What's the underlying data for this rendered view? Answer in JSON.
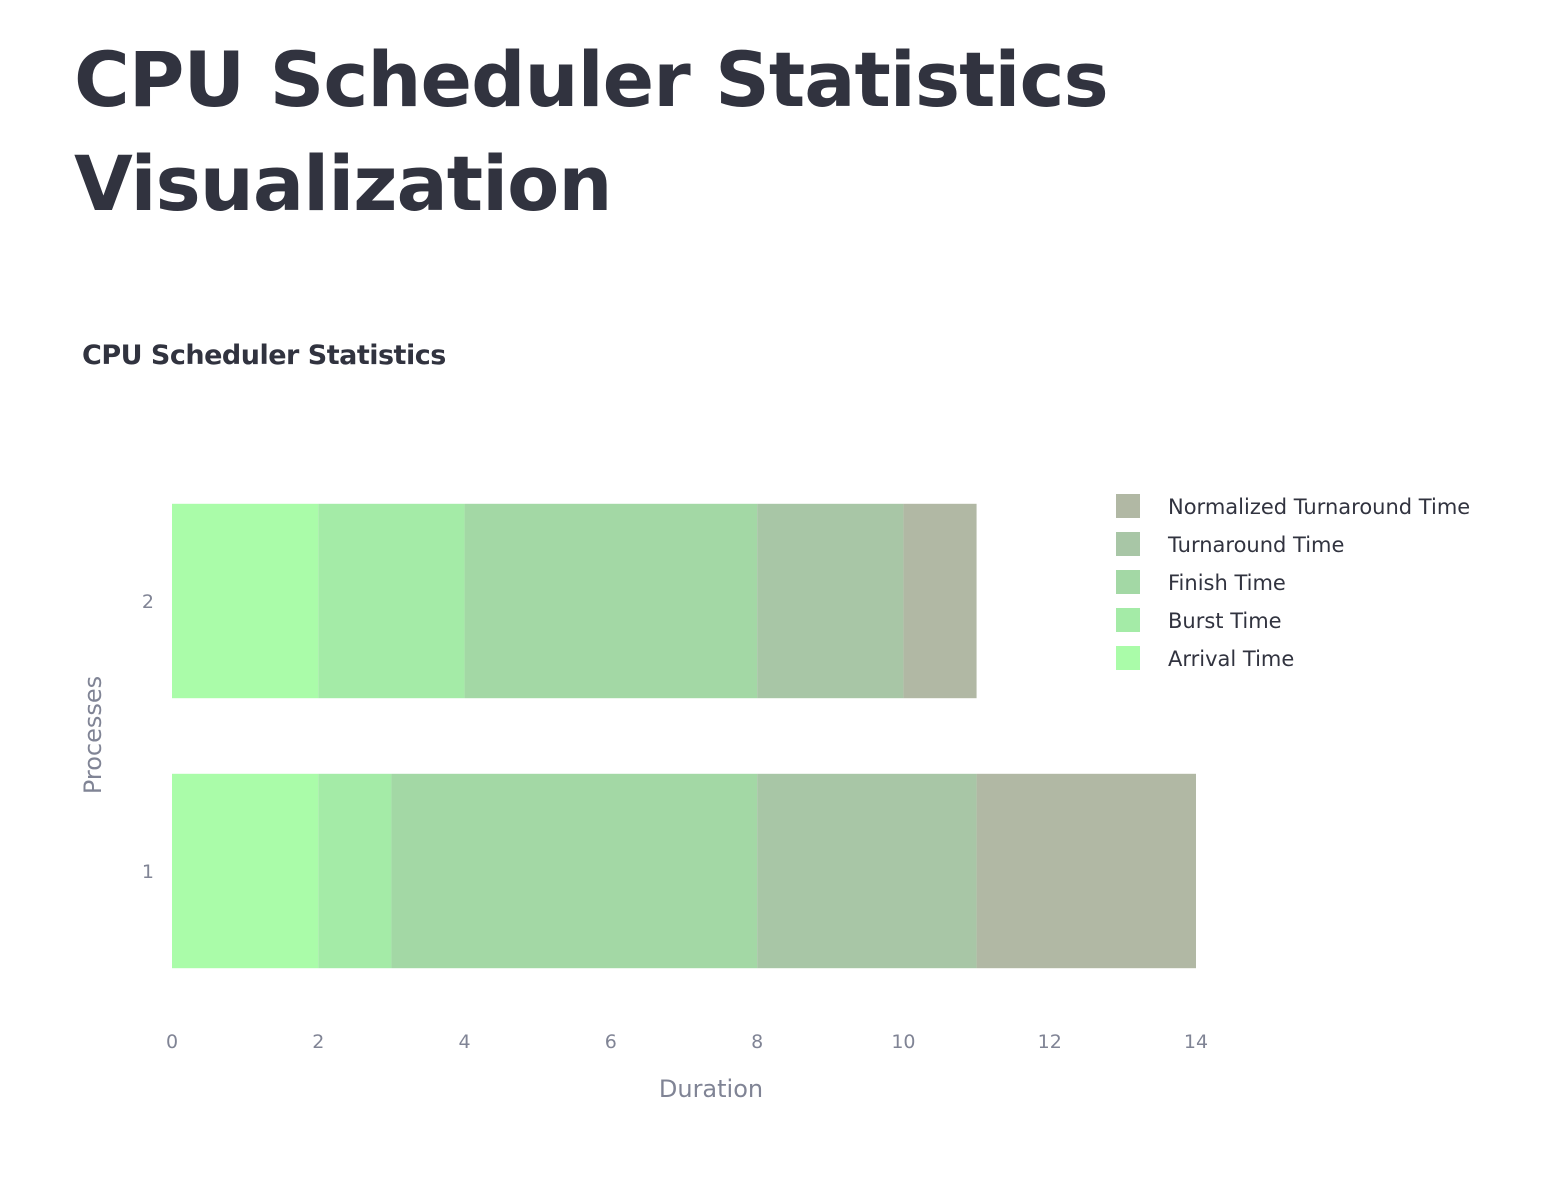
{
  "page": {
    "title": "CPU Scheduler Statistics Visualization"
  },
  "chart_data": {
    "type": "bar",
    "orientation": "horizontal",
    "stacked": true,
    "title": "CPU Scheduler Statistics",
    "xlabel": "Duration",
    "ylabel": "Processes",
    "categories": [
      "1",
      "2"
    ],
    "xlim": [
      0,
      14
    ],
    "xticks": [
      0,
      2,
      4,
      6,
      8,
      10,
      12,
      14
    ],
    "grid": false,
    "legend_position": "top-right",
    "series": [
      {
        "name": "Arrival Time",
        "color": "#aafca9",
        "values": [
          2,
          2
        ]
      },
      {
        "name": "Burst Time",
        "color": "#a4eba7",
        "values": [
          1,
          2
        ]
      },
      {
        "name": "Finish Time",
        "color": "#a3d8a5",
        "values": [
          5,
          4
        ]
      },
      {
        "name": "Turnaround Time",
        "color": "#a8c6a6",
        "values": [
          3,
          2
        ]
      },
      {
        "name": "Normalized Turnaround Time",
        "color": "#b1b8a4",
        "values": [
          3,
          1
        ]
      }
    ]
  }
}
